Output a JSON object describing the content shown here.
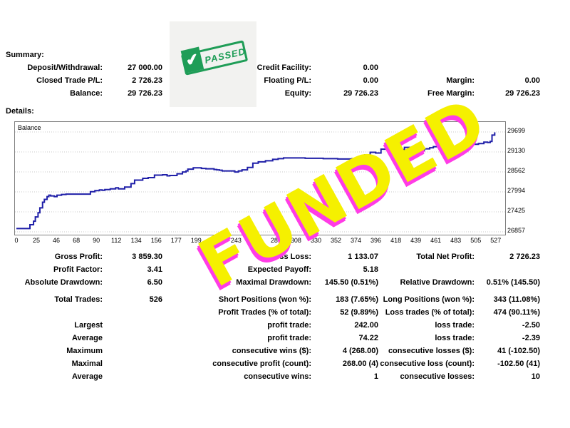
{
  "summary": {
    "title": "Summary:",
    "deposit_label": "Deposit/Withdrawal:",
    "deposit_value": "27 000.00",
    "closed_pl_label": "Closed Trade P/L:",
    "closed_pl_value": "2 726.23",
    "balance_label": "Balance:",
    "balance_value": "29 726.23",
    "credit_label": "Credit Facility:",
    "credit_value": "0.00",
    "floating_label": "Floating P/L:",
    "floating_value": "0.00",
    "equity_label": "Equity:",
    "equity_value": "29 726.23",
    "margin_label": "Margin:",
    "margin_value": "0.00",
    "free_margin_label": "Free Margin:",
    "free_margin_value": "29 726.23"
  },
  "stamp": {
    "text": "PASSED",
    "icon": "checkmark-icon",
    "color": "#1f9d57"
  },
  "details": {
    "title": "Details:"
  },
  "overlay": {
    "text": "FUNDED",
    "fill": "#f5f000",
    "shadow": "#ff3ce6"
  },
  "chart_data": {
    "type": "line",
    "legend": "Balance",
    "x_ticks": [
      "0",
      "25",
      "46",
      "68",
      "90",
      "112",
      "134",
      "156",
      "177",
      "199",
      "221",
      "243",
      "265",
      "287",
      "308",
      "330",
      "352",
      "374",
      "396",
      "418",
      "439",
      "461",
      "483",
      "505",
      "527"
    ],
    "y_ticks": [
      "29699",
      "29130",
      "28562",
      "27994",
      "27425",
      "26857"
    ],
    "ylim": [
      26857,
      29699
    ],
    "xlim": [
      0,
      540
    ],
    "line_color": "#1f1fa8",
    "series": [
      {
        "x": [
          0,
          12,
          15,
          19,
          21,
          24,
          26,
          29,
          31,
          34,
          36,
          38,
          42,
          45,
          50,
          55,
          60,
          66,
          72,
          77,
          82,
          87,
          92,
          95,
          98,
          104,
          110,
          113,
          120,
          127,
          131,
          140,
          146,
          153,
          162,
          167,
          170,
          178,
          184,
          188,
          190,
          196,
          200,
          205,
          210,
          215,
          219,
          222,
          225,
          228,
          238,
          242,
          246,
          250,
          256,
          262,
          268,
          276,
          284,
          290,
          296,
          302,
          320,
          330,
          340,
          350,
          356,
          362,
          368,
          372,
          376,
          380,
          386,
          392,
          398,
          404,
          410,
          416,
          420,
          425,
          430,
          436,
          442,
          448,
          452,
          458,
          462,
          468,
          475,
          482,
          488,
          494,
          500,
          506,
          512,
          518,
          522,
          525,
          527,
          530
        ],
        "y": [
          26950,
          26950,
          27060,
          27160,
          27280,
          27400,
          27540,
          27700,
          27780,
          27860,
          27900,
          27880,
          27860,
          27900,
          27920,
          27930,
          27930,
          27930,
          27930,
          27930,
          28000,
          28030,
          28050,
          28040,
          28060,
          28080,
          28110,
          28080,
          28130,
          28230,
          28330,
          28380,
          28400,
          28470,
          28480,
          28450,
          28460,
          28510,
          28560,
          28590,
          28640,
          28680,
          28680,
          28660,
          28650,
          28650,
          28630,
          28620,
          28610,
          28590,
          28590,
          28560,
          28590,
          28620,
          28690,
          28810,
          28850,
          28880,
          28920,
          28940,
          28960,
          28960,
          28950,
          28950,
          28940,
          28940,
          28930,
          28930,
          28930,
          28940,
          28950,
          28980,
          29050,
          29120,
          29100,
          29210,
          29280,
          29250,
          29230,
          29200,
          29260,
          29220,
          29200,
          29180,
          29220,
          29250,
          29280,
          29260,
          29280,
          29270,
          29320,
          29340,
          29360,
          29350,
          29370,
          29410,
          29400,
          29430,
          29610,
          29690
        ]
      }
    ]
  }
}
